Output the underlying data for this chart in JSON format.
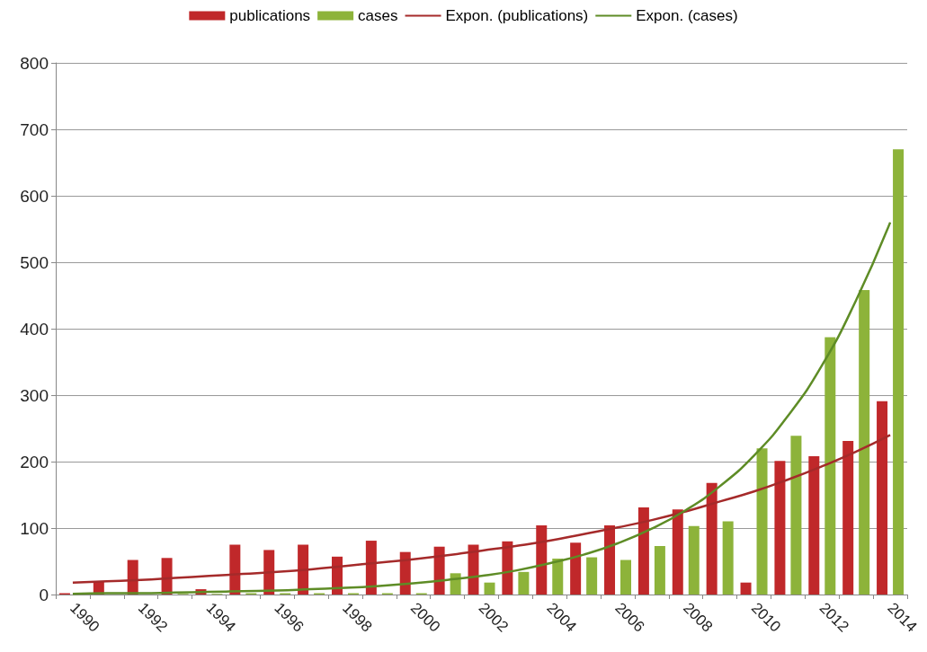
{
  "chart_data": {
    "type": "bar",
    "categories": [
      "1990",
      null,
      "1992",
      null,
      "1994",
      null,
      "1996",
      null,
      "1998",
      null,
      "2000",
      null,
      "2002",
      null,
      "2004",
      null,
      "2006",
      null,
      "2008",
      null,
      "2010",
      null,
      "2012",
      null,
      "2014"
    ],
    "series": [
      {
        "name": "publications",
        "color": "#c0282a",
        "values": [
          2,
          20,
          52,
          55,
          8,
          75,
          67,
          75,
          57,
          81,
          64,
          72,
          75,
          80,
          104,
          78,
          104,
          131,
          128,
          168,
          18,
          201,
          208,
          231,
          291
        ]
      },
      {
        "name": "cases",
        "color": "#8db33a",
        "values": [
          1,
          null,
          null,
          1,
          1,
          2,
          2,
          2,
          2,
          2,
          2,
          32,
          18,
          34,
          54,
          56,
          52,
          73,
          103,
          110,
          220,
          239,
          387,
          458,
          670
        ]
      },
      {
        "name": "Expon. (publications)",
        "type": "line",
        "color": "#a52a2a",
        "values": [
          18,
          20,
          22,
          25,
          28,
          31,
          34,
          38,
          43,
          48,
          53,
          59,
          66,
          73,
          81,
          91,
          101,
          112,
          125,
          140,
          155,
          173,
          193,
          215,
          240
        ]
      },
      {
        "name": "Expon. (cases)",
        "type": "line",
        "color": "#5e8c26",
        "values": [
          1,
          2,
          2,
          3,
          4,
          5,
          6,
          8,
          10,
          13,
          17,
          22,
          28,
          36,
          47,
          60,
          77,
          99,
          127,
          163,
          209,
          269,
          345,
          443,
          560
        ]
      }
    ],
    "ylim": [
      0,
      800
    ],
    "yticks": [
      0,
      100,
      200,
      300,
      400,
      500,
      600,
      700,
      800
    ],
    "grid": "y",
    "legend": "top",
    "marker": "none"
  }
}
